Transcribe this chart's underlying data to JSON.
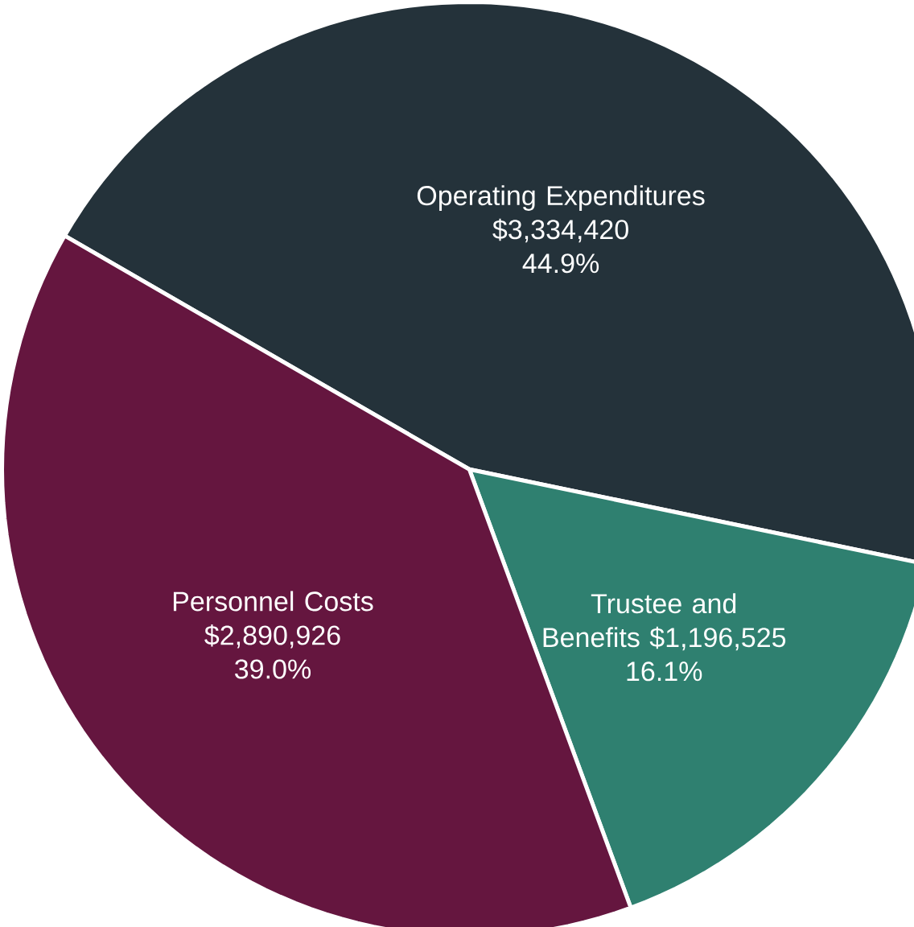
{
  "chart_data": {
    "type": "pie",
    "categories": [
      "Operating Expenditures",
      "Trustee and Benefits",
      "Personnel Costs"
    ],
    "values": [
      3334420,
      1196525,
      2890926
    ],
    "colors": [
      "#24323a",
      "#2f8070",
      "#65163f"
    ],
    "value_labels": [
      "$3,334,420",
      "$1,196,525",
      "$2,890,926"
    ],
    "annotations": [
      "44.9%",
      "16.1%",
      "39.0%"
    ]
  }
}
